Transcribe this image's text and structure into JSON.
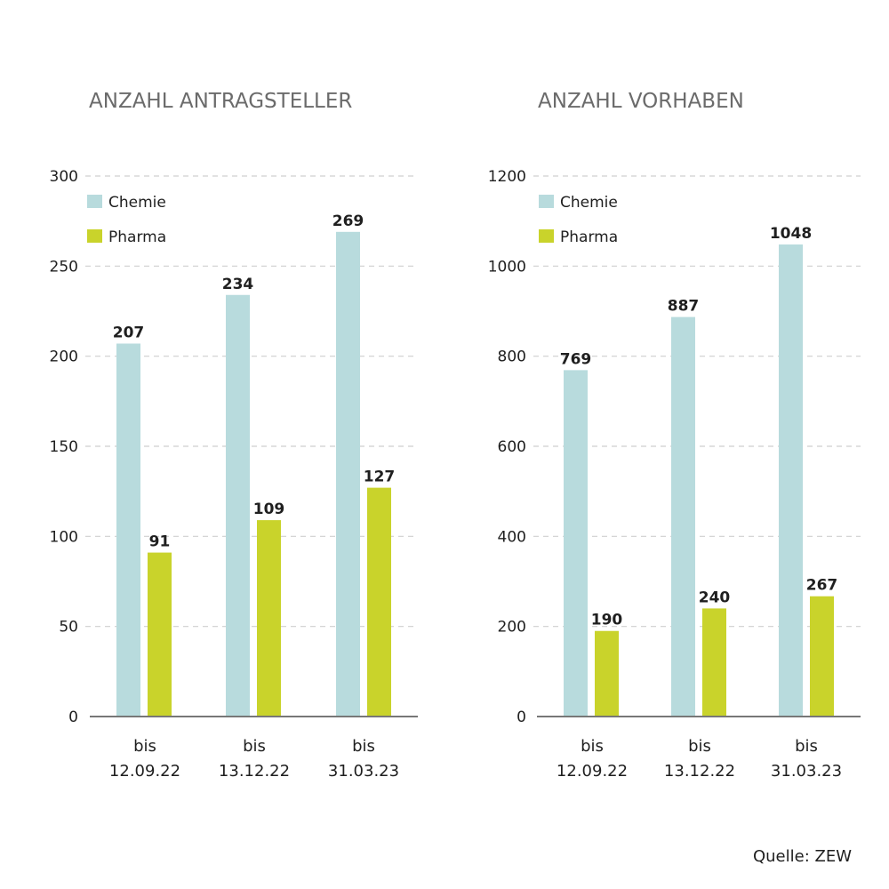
{
  "chart_data": [
    {
      "type": "bar",
      "title": "ANZAHL ANTRAGSTELLER",
      "categories": [
        [
          "bis",
          "12.09.22"
        ],
        [
          "bis",
          "13.12.22"
        ],
        [
          "bis",
          "31.03.23"
        ]
      ],
      "series": [
        {
          "name": "Chemie",
          "values": [
            207,
            234,
            269
          ]
        },
        {
          "name": "Pharma",
          "values": [
            91,
            109,
            127
          ]
        }
      ],
      "ylim": [
        0,
        300
      ],
      "yticks": [
        0,
        50,
        100,
        150,
        200,
        250,
        300
      ],
      "grid": true,
      "legend": "top-left"
    },
    {
      "type": "bar",
      "title": "ANZAHL VORHABEN",
      "categories": [
        [
          "bis",
          "12.09.22"
        ],
        [
          "bis",
          "13.12.22"
        ],
        [
          "bis",
          "31.03.23"
        ]
      ],
      "series": [
        {
          "name": "Chemie",
          "values": [
            769,
            887,
            1048
          ]
        },
        {
          "name": "Pharma",
          "values": [
            190,
            240,
            267
          ]
        }
      ],
      "ylim": [
        0,
        1200
      ],
      "yticks": [
        0,
        200,
        400,
        600,
        800,
        1000,
        1200
      ],
      "grid": true,
      "legend": "top-left"
    }
  ],
  "colors": {
    "chemie": "#b8dbdd",
    "pharma": "#c9d32b",
    "title": "#6b6b6b",
    "grid": "#cfcfcf",
    "axis": "#777777",
    "text": "#1f1f1f"
  },
  "source": "Quelle: ZEW"
}
